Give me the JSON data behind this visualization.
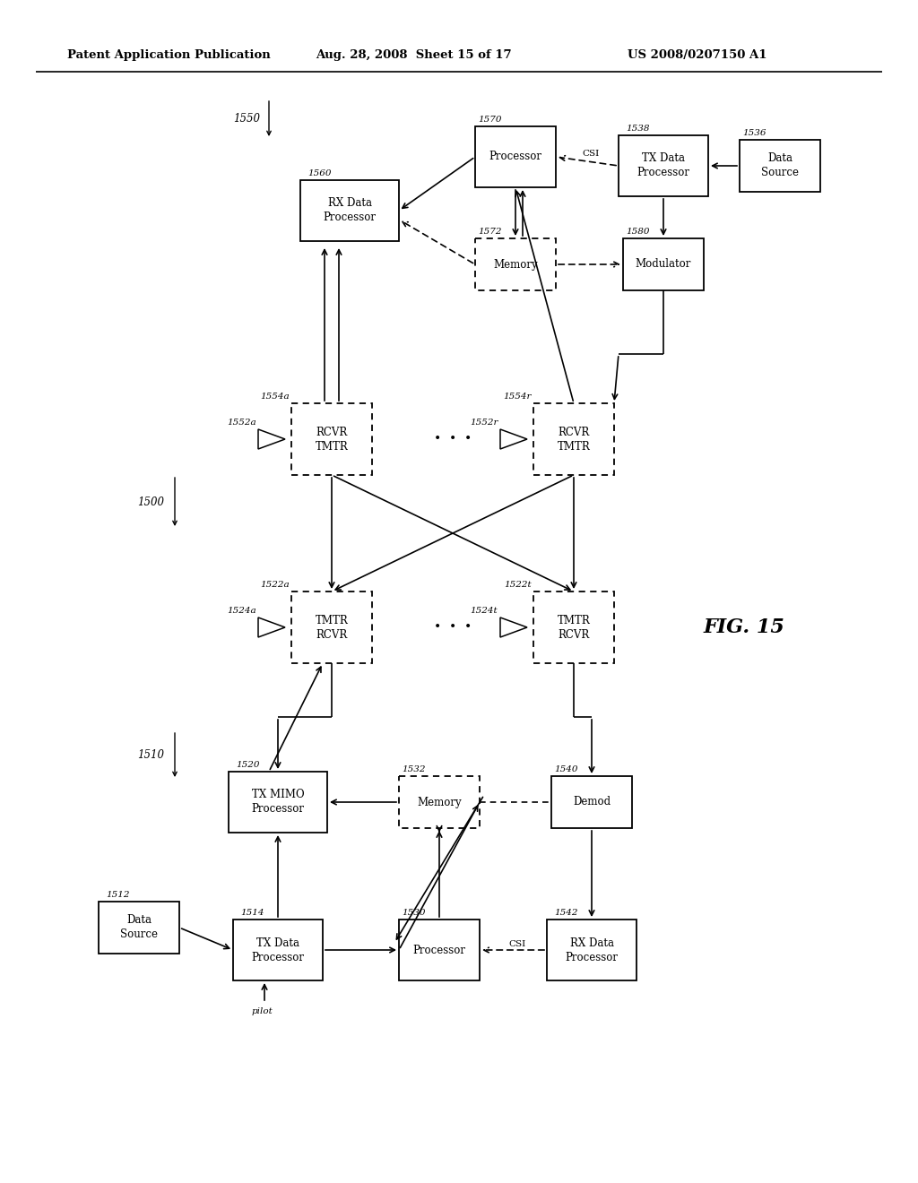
{
  "title_left": "Patent Application Publication",
  "title_mid": "Aug. 28, 2008  Sheet 15 of 17",
  "title_right": "US 2008/0207150 A1",
  "fig_label": "FIG. 15",
  "bg_color": "#ffffff"
}
